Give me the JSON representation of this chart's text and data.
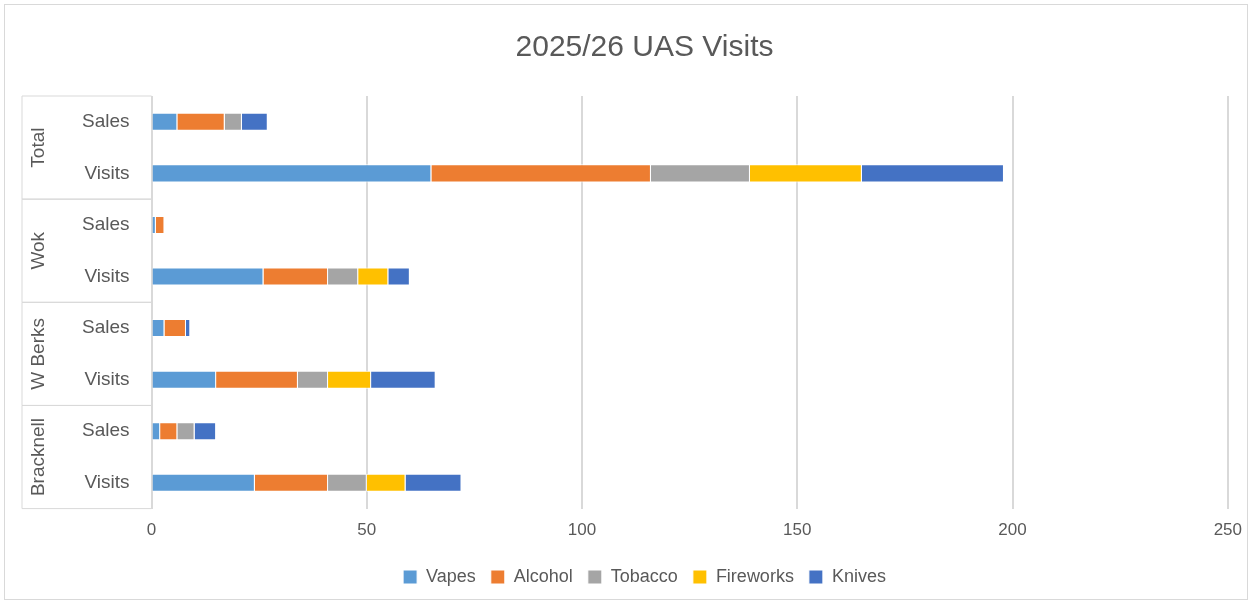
{
  "chart_data": {
    "type": "bar",
    "orientation": "horizontal",
    "stacked": true,
    "title": "2025/26 UAS Visits",
    "categories": [
      "Sales",
      "Visits",
      "Sales",
      "Visits",
      "Sales",
      "Visits",
      "Sales",
      "Visits"
    ],
    "annotations": [
      "Total",
      "Wok",
      "W Berks",
      "Bracknell"
    ],
    "series": [
      {
        "name": "Vapes",
        "color": "#5b9bd5",
        "values": [
          6,
          65,
          1,
          26,
          3,
          15,
          2,
          24
        ]
      },
      {
        "name": "Alcohol",
        "color": "#ed7d31",
        "values": [
          11,
          51,
          2,
          15,
          5,
          19,
          4,
          17
        ]
      },
      {
        "name": "Tobacco",
        "color": "#a5a5a5",
        "values": [
          4,
          23,
          0,
          7,
          0,
          7,
          4,
          9
        ]
      },
      {
        "name": "Fireworks",
        "color": "#ffc000",
        "values": [
          0,
          26,
          0,
          7,
          0,
          10,
          0,
          9
        ]
      },
      {
        "name": "Knives",
        "color": "#4472c4",
        "values": [
          6,
          33,
          0,
          5,
          1,
          15,
          5,
          13
        ]
      }
    ],
    "xlim": [
      0,
      250
    ],
    "xticks": [
      0,
      50,
      100,
      150,
      200,
      250
    ],
    "grid": "x",
    "legend": "bottom"
  }
}
